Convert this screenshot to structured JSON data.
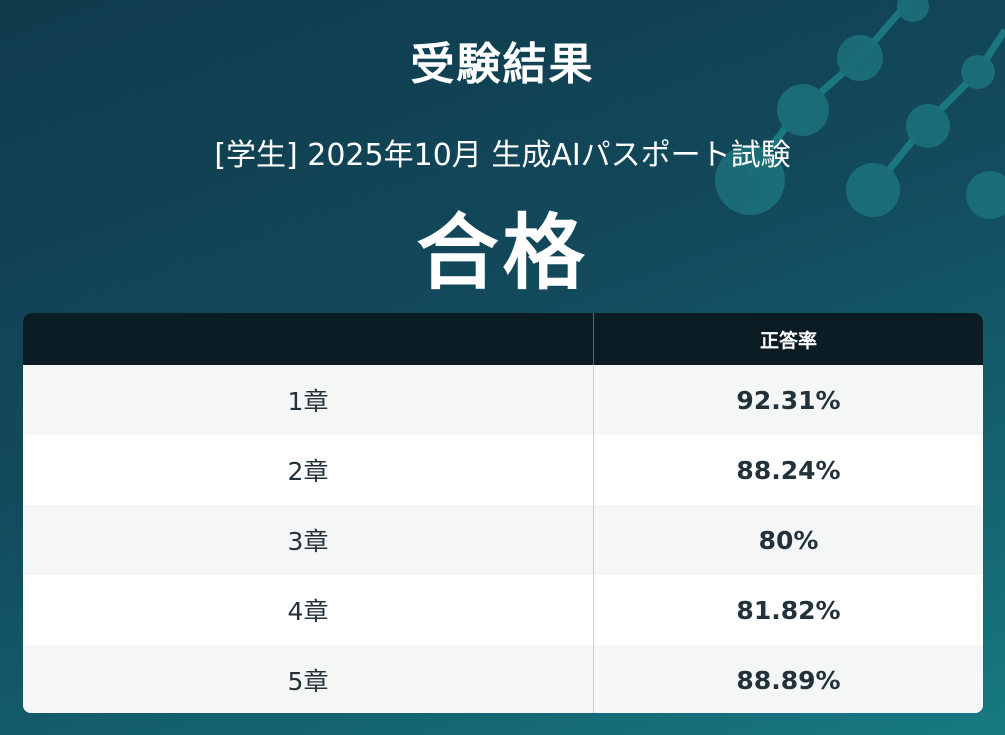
{
  "header": {
    "title": "受験結果",
    "exam": "[学生] 2025年10月 生成AIパスポート試験",
    "result": "合格"
  },
  "table": {
    "columns": [
      "",
      "正答率"
    ],
    "rows": [
      {
        "chapter": "1章",
        "rate": "92.31%"
      },
      {
        "chapter": "2章",
        "rate": "88.24%"
      },
      {
        "chapter": "3章",
        "rate": "80%"
      },
      {
        "chapter": "4章",
        "rate": "81.82%"
      },
      {
        "chapter": "5章",
        "rate": "88.89%"
      }
    ]
  },
  "colors": {
    "background_start": "#0f3a4c",
    "background_end": "#177a83",
    "table_header": "#0b1c24",
    "row_shaded": "#f5f6f6",
    "text_dark": "#23323a"
  }
}
